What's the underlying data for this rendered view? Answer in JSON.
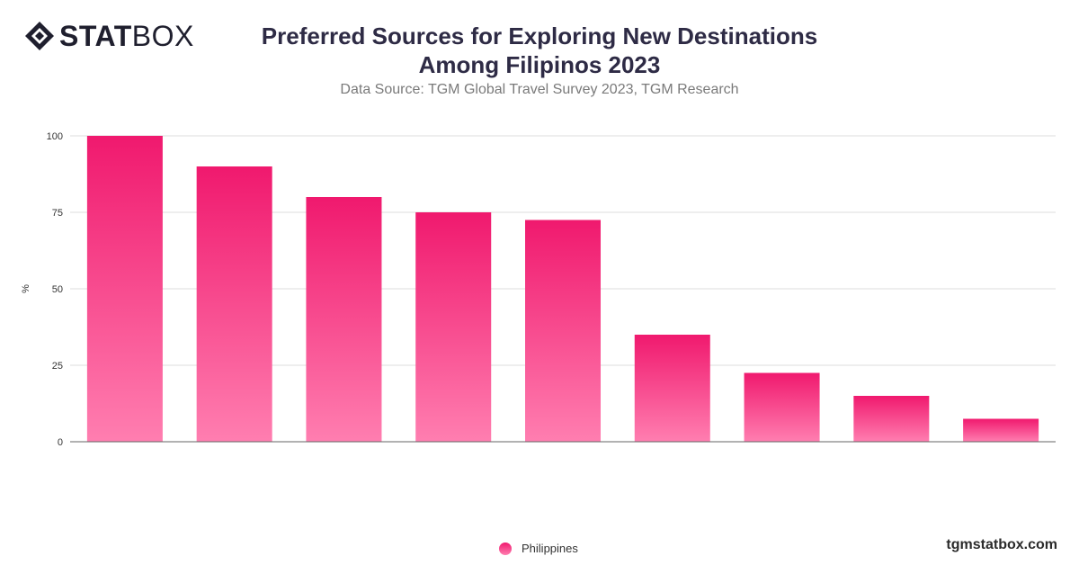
{
  "brand": {
    "bold": "STAT",
    "light": "BOX",
    "logo_icon": "statbox-diamond-icon"
  },
  "header": {
    "title_line1": "Preferred Sources for Exploring New Destinations",
    "title_line2": "Among Filipinos 2023",
    "subtitle": "Data Source: TGM Global Travel Survey 2023, TGM Research"
  },
  "legend": {
    "label": "Philippines"
  },
  "credit": "tgmstatbox.com",
  "chart_data": {
    "type": "bar",
    "title": "Preferred Sources for Exploring New Destinations Among Filipinos 2023",
    "subtitle": "Data Source: TGM Global Travel Survey 2023, TGM Research",
    "xlabel": "",
    "ylabel": "%",
    "categories": [
      "",
      "",
      "",
      "",
      "",
      "",
      "",
      "",
      ""
    ],
    "series": [
      {
        "name": "Philippines",
        "values": [
          100,
          90,
          80,
          75,
          72.5,
          35,
          22.5,
          15,
          7.5
        ]
      }
    ],
    "ylim": [
      0,
      100
    ],
    "yticks": [
      0,
      25,
      50,
      75,
      100
    ],
    "grid": true,
    "legend_position": "bottom",
    "colors": {
      "bar_top": "#f0196e",
      "bar_bottom": "#ff7eb0",
      "grid": "#dddddd",
      "axis": "#666666"
    }
  }
}
